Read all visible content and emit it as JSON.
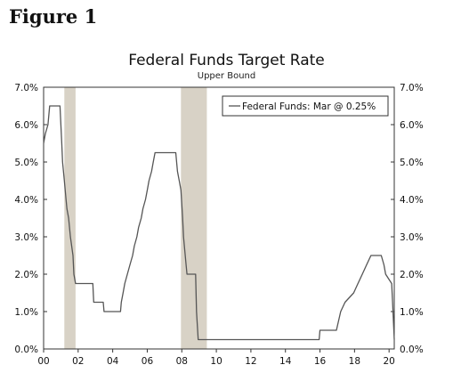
{
  "figure_label": "Figure 1",
  "chart_data": {
    "type": "line",
    "title": "Federal Funds Target Rate",
    "subtitle": "Upper Bound",
    "xlabel": "",
    "ylabel": "",
    "xlim": [
      2000,
      2020.3
    ],
    "ylim": [
      0,
      7
    ],
    "x_ticks": [
      {
        "value": 2000,
        "label": "00"
      },
      {
        "value": 2002,
        "label": "02"
      },
      {
        "value": 2004,
        "label": "04"
      },
      {
        "value": 2006,
        "label": "06"
      },
      {
        "value": 2008,
        "label": "08"
      },
      {
        "value": 2010,
        "label": "10"
      },
      {
        "value": 2012,
        "label": "12"
      },
      {
        "value": 2014,
        "label": "14"
      },
      {
        "value": 2016,
        "label": "16"
      },
      {
        "value": 2018,
        "label": "18"
      },
      {
        "value": 2020,
        "label": "20"
      }
    ],
    "y_ticks": [
      {
        "value": 0,
        "label": "0.0%"
      },
      {
        "value": 1,
        "label": "1.0%"
      },
      {
        "value": 2,
        "label": "2.0%"
      },
      {
        "value": 3,
        "label": "3.0%"
      },
      {
        "value": 4,
        "label": "4.0%"
      },
      {
        "value": 5,
        "label": "5.0%"
      },
      {
        "value": 6,
        "label": "6.0%"
      },
      {
        "value": 7,
        "label": "7.0%"
      }
    ],
    "recessions": [
      {
        "start": 2001.2,
        "end": 2001.85
      },
      {
        "start": 2007.95,
        "end": 2009.45
      }
    ],
    "recession_color": "#d8d2c6",
    "line_color": "#555555",
    "legend": {
      "label": "Federal Funds: Mar @ 0.25%",
      "placement": "top-right"
    },
    "series": [
      {
        "name": "Federal Funds: Mar @ 0.25%",
        "x": [
          2000.0,
          2000.1,
          2000.25,
          2000.35,
          2000.55,
          2000.95,
          2001.0,
          2001.05,
          2001.1,
          2001.2,
          2001.3,
          2001.35,
          2001.45,
          2001.55,
          2001.7,
          2001.75,
          2001.85,
          2001.95,
          2002.85,
          2002.9,
          2003.45,
          2003.5,
          2004.45,
          2004.5,
          2004.6,
          2004.7,
          2004.85,
          2005.0,
          2005.15,
          2005.25,
          2005.4,
          2005.5,
          2005.65,
          2005.75,
          2005.9,
          2006.0,
          2006.1,
          2006.25,
          2006.35,
          2006.45,
          2007.65,
          2007.75,
          2007.85,
          2007.95,
          2008.05,
          2008.1,
          2008.25,
          2008.3,
          2008.8,
          2008.85,
          2008.95,
          2015.95,
          2016.0,
          2016.95,
          2017.2,
          2017.45,
          2017.95,
          2018.2,
          2018.45,
          2018.7,
          2018.95,
          2019.55,
          2019.7,
          2019.8,
          2020.15,
          2020.2,
          2020.3
        ],
        "values": [
          5.5,
          5.75,
          6.0,
          6.5,
          6.5,
          6.5,
          6.0,
          5.5,
          5.0,
          4.5,
          4.0,
          3.75,
          3.5,
          3.0,
          2.5,
          2.0,
          1.75,
          1.75,
          1.75,
          1.25,
          1.25,
          1.0,
          1.0,
          1.25,
          1.5,
          1.75,
          2.0,
          2.25,
          2.5,
          2.75,
          3.0,
          3.25,
          3.5,
          3.75,
          4.0,
          4.25,
          4.5,
          4.75,
          5.0,
          5.25,
          5.25,
          4.75,
          4.5,
          4.25,
          3.5,
          3.0,
          2.25,
          2.0,
          2.0,
          1.0,
          0.25,
          0.25,
          0.5,
          0.5,
          1.0,
          1.25,
          1.5,
          1.75,
          2.0,
          2.25,
          2.5,
          2.5,
          2.25,
          2.0,
          1.75,
          1.25,
          0.25
        ]
      }
    ]
  }
}
